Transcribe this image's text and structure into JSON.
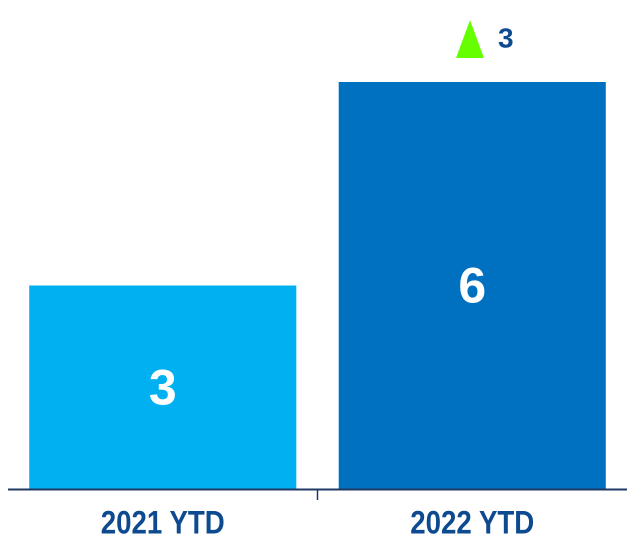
{
  "chart_data": {
    "type": "bar",
    "categories": [
      "2021 YTD",
      "2022 YTD"
    ],
    "values": [
      3,
      6
    ],
    "colors": [
      "#00b0f0",
      "#0070c0"
    ],
    "ylim": [
      0,
      6
    ],
    "change": 3,
    "change_color": "#66ff00",
    "label_color": "#0d4a8f"
  }
}
